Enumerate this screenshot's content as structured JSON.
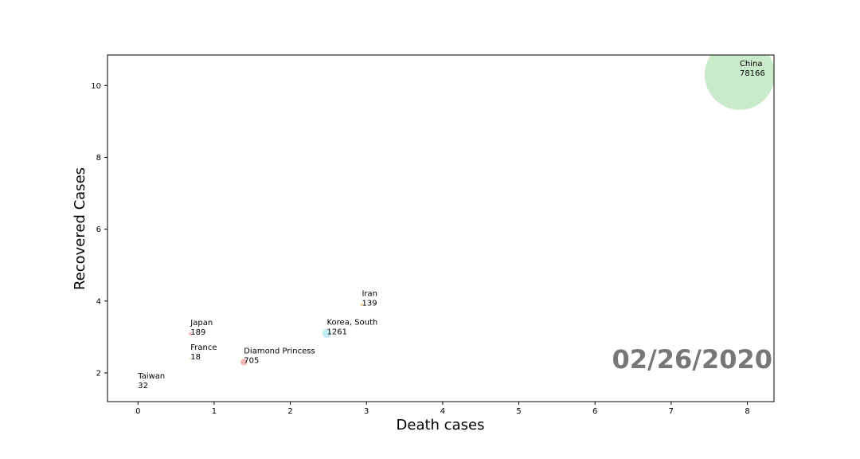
{
  "chart_data": {
    "type": "scatter",
    "xlabel": "Death cases",
    "ylabel": "Recovered Cases",
    "xlim": [
      -0.4,
      8.35
    ],
    "ylim": [
      1.2,
      10.85
    ],
    "xticks": [
      "0",
      "1",
      "2",
      "3",
      "4",
      "5",
      "6",
      "7",
      "8"
    ],
    "yticks": [
      "2",
      "4",
      "6",
      "8",
      "10"
    ],
    "grid": false,
    "date": "02/26/2020",
    "colors": {
      "axis": "#000000",
      "date": "#777777"
    },
    "points": [
      {
        "name": "China",
        "count": "78166",
        "x": 7.9,
        "y": 10.3,
        "color": "#c7e9c9"
      },
      {
        "name": "Iran",
        "count": "139",
        "x": 2.94,
        "y": 3.9,
        "color": "#f6d4a8"
      },
      {
        "name": "Korea, South",
        "count": "1261",
        "x": 2.48,
        "y": 3.1,
        "color": "#c2ecf7"
      },
      {
        "name": "Japan",
        "count": "189",
        "x": 0.69,
        "y": 3.09,
        "color": "#f3b8b8"
      },
      {
        "name": "France",
        "count": "18",
        "x": 0.69,
        "y": 2.4,
        "color": "#f6e0b8"
      },
      {
        "name": "Diamond Princess",
        "count": "705",
        "x": 1.39,
        "y": 2.3,
        "color": "#f0b4b2"
      },
      {
        "name": "Taiwan",
        "count": "32",
        "x": 0.0,
        "y": 1.6,
        "color": "#d8d8d8"
      }
    ]
  }
}
